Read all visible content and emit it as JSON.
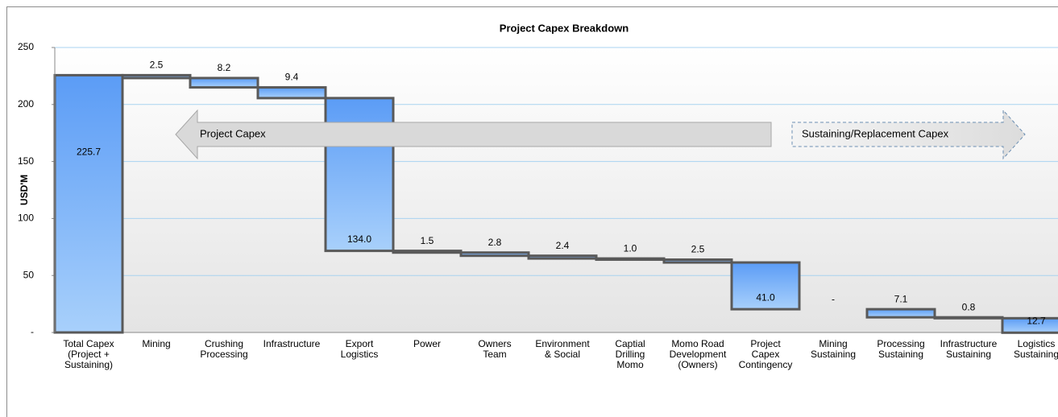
{
  "chart_data": {
    "type": "waterfall",
    "title": "Project Capex Breakdown",
    "y_label": "USD'M",
    "categories": [
      "Total Capex\n(Project +\nSustaining)",
      "Mining",
      "Crushing\nProcessing",
      "Infrastructure",
      "Export\nLogistics",
      "Power",
      "Owners\nTeam",
      "Environment\n& Social",
      "Captial\nDrilling\nMomo",
      "Momo Road\nDevelopment\n(Owners)",
      "Project\nCapex\nContingency",
      "Mining\nSustaining",
      "Processing\nSustaining",
      "Infrastructure\nSustaining",
      "Logistics\nSustaining"
    ],
    "measure": [
      "total",
      "decrease",
      "decrease",
      "decrease",
      "decrease",
      "decrease",
      "decrease",
      "decrease",
      "decrease",
      "decrease",
      "decrease",
      "decrease",
      "decrease",
      "decrease",
      "decrease"
    ],
    "values": [
      225.7,
      2.5,
      8.2,
      9.4,
      134.0,
      1.5,
      2.8,
      2.4,
      1.0,
      2.5,
      41.0,
      0,
      7.1,
      0.8,
      12.7
    ],
    "value_labels": [
      "225.7",
      "2.5",
      "8.2",
      "9.4",
      "134.0",
      "1.5",
      "2.8",
      "2.4",
      "1.0",
      "2.5",
      "41.0",
      "-",
      "7.1",
      "0.8",
      "12.7"
    ],
    "color": "#5b9cf6",
    "ylim": [
      0,
      250
    ],
    "yticks": [
      {
        "value": 0,
        "label": "-"
      },
      50,
      100,
      150,
      200,
      250
    ],
    "grid": true,
    "annotations": [
      "Project Capex",
      "Sustaining/Replacement Capex"
    ]
  }
}
